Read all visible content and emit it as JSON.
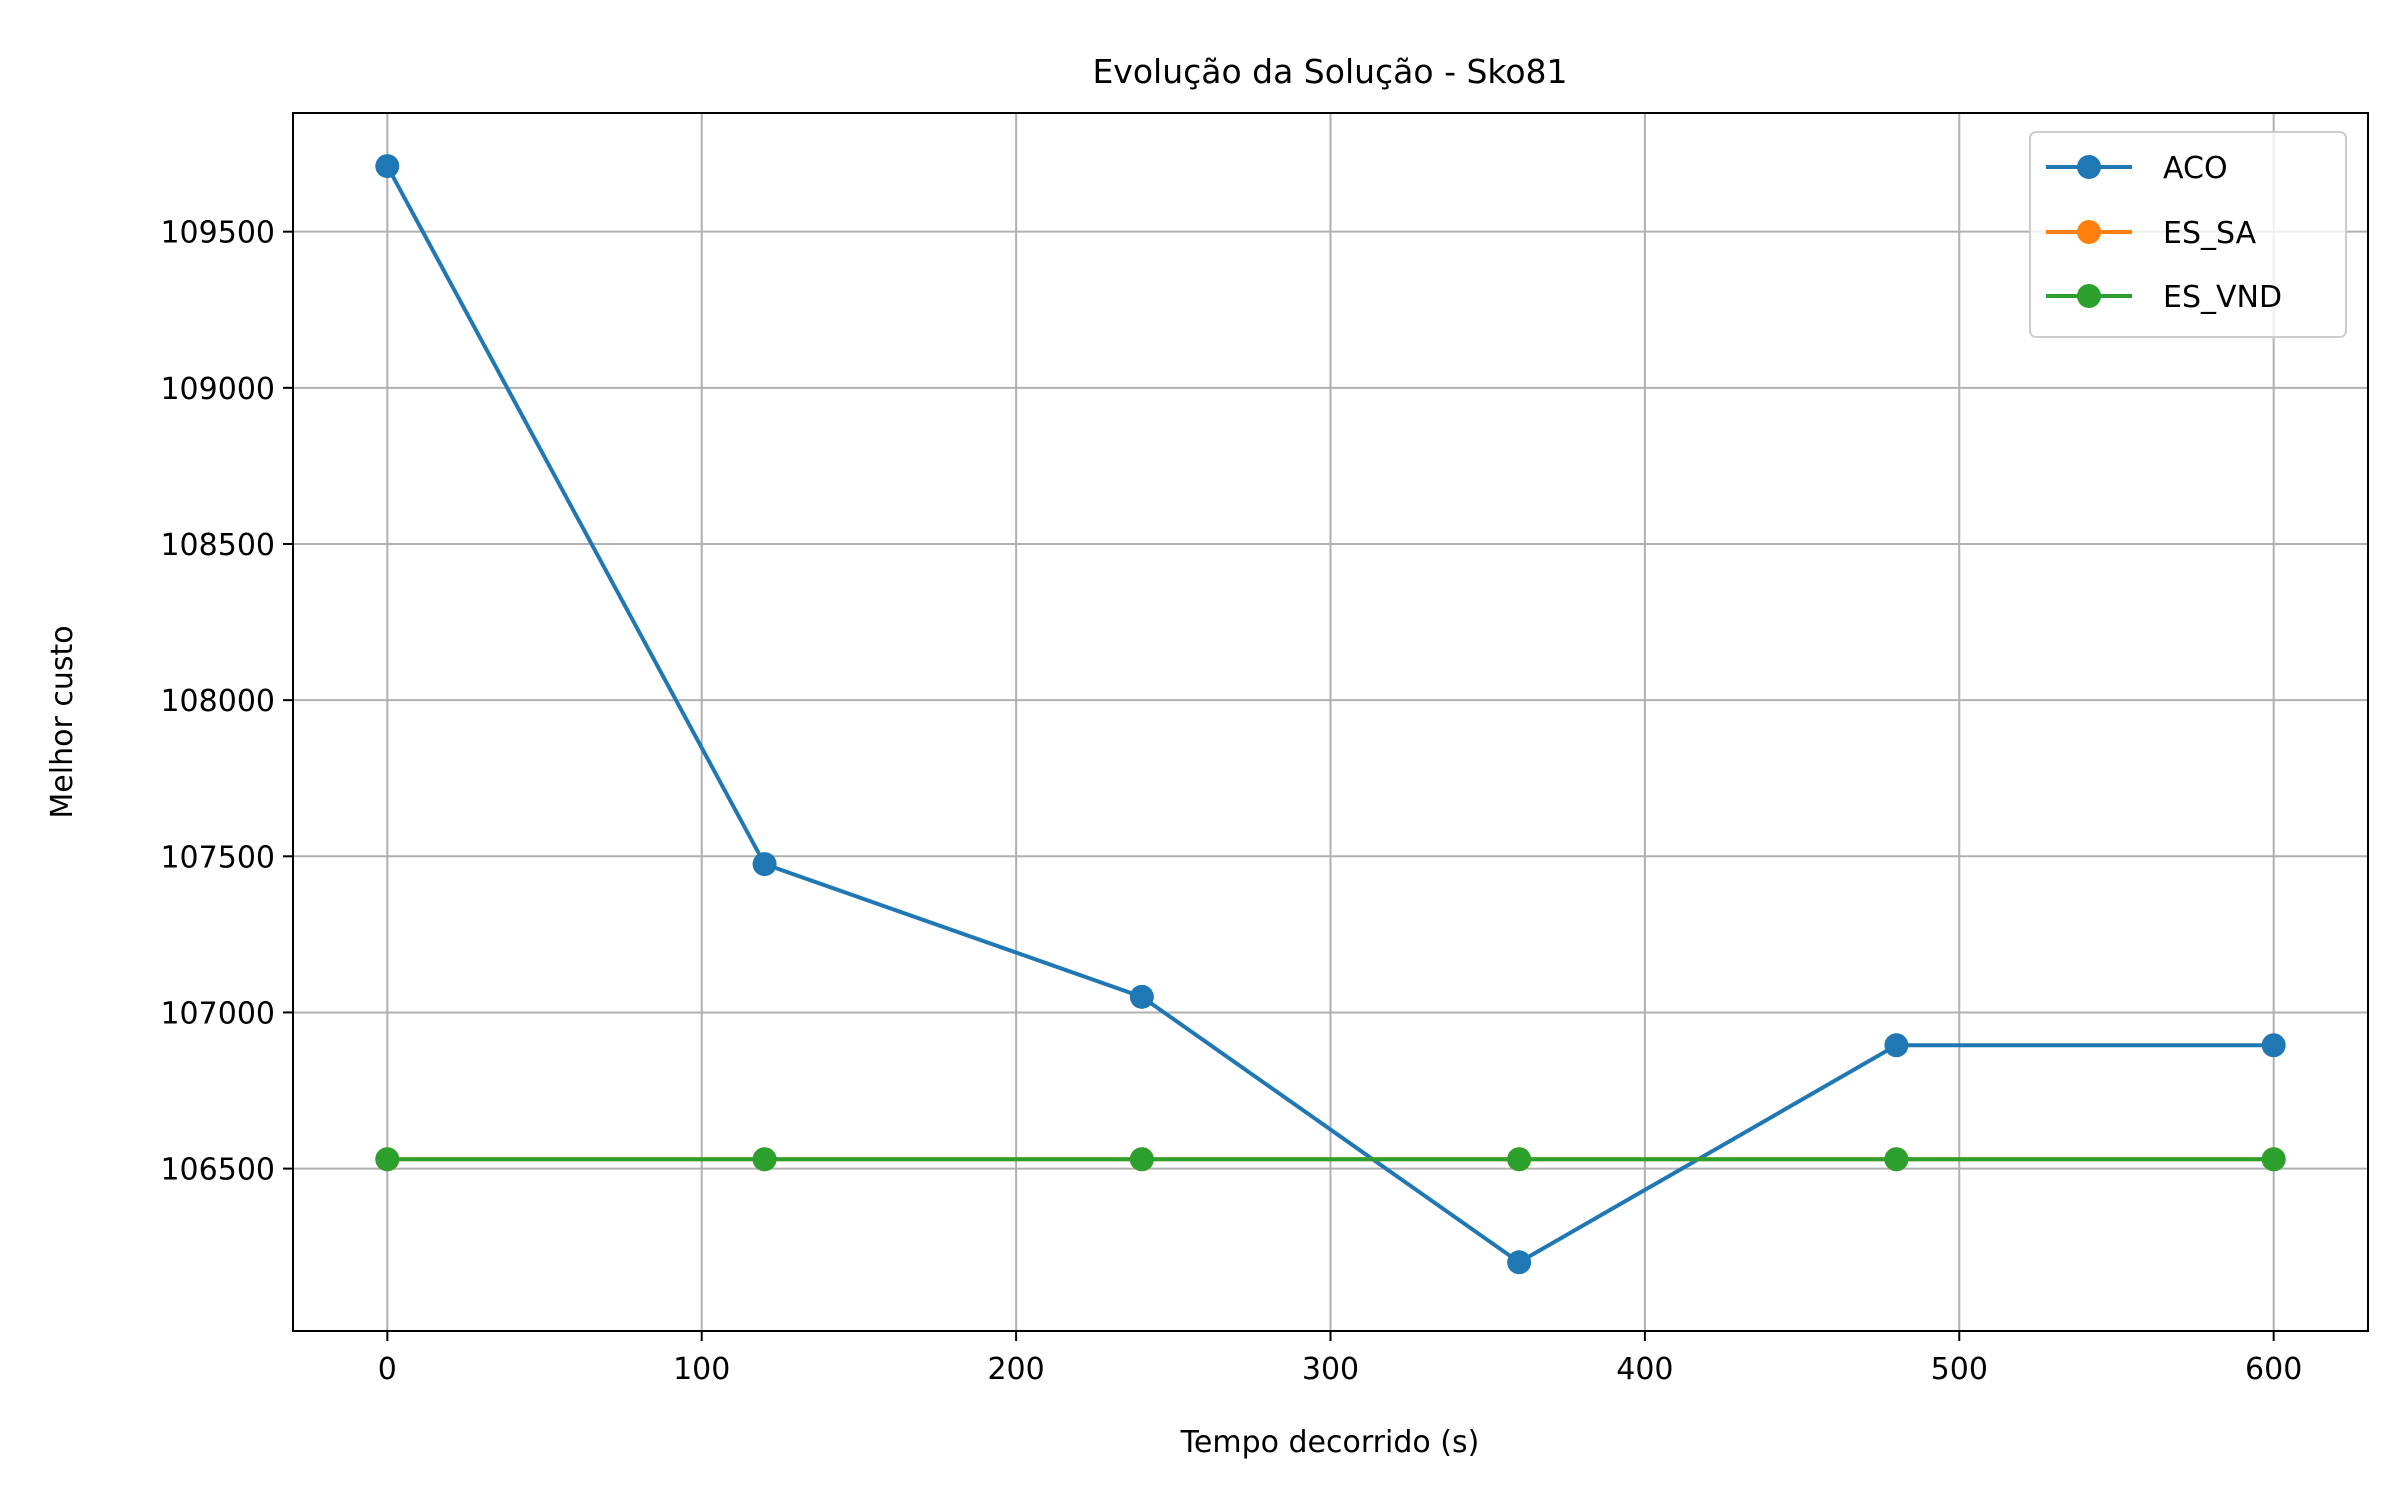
{
  "chart_data": {
    "type": "line",
    "title": "Evolução da Solução - Sko81",
    "xlabel": "Tempo decorrido (s)",
    "ylabel": "Melhor custo",
    "xlim": [
      -30,
      630
    ],
    "ylim": [
      105980,
      109880
    ],
    "xticks": [
      0,
      100,
      200,
      300,
      400,
      500,
      600
    ],
    "yticks": [
      106500,
      107000,
      107500,
      108000,
      108500,
      109000,
      109500
    ],
    "grid": true,
    "legend_position": "top-right",
    "series": [
      {
        "name": "ACO",
        "color": "#1f77b4",
        "x": [
          0,
          120,
          240,
          360,
          480,
          600
        ],
        "y": [
          109710,
          107475,
          107050,
          106200,
          106895,
          106895
        ]
      },
      {
        "name": "ES_SA",
        "color": "#ff7f0e",
        "x": [
          0,
          120,
          240,
          360,
          480,
          600
        ],
        "y": [
          106530,
          106530,
          106530,
          106530,
          106530,
          106530
        ]
      },
      {
        "name": "ES_VND",
        "color": "#2ca02c",
        "x": [
          0,
          120,
          240,
          360,
          480,
          600
        ],
        "y": [
          106530,
          106530,
          106530,
          106530,
          106530,
          106530
        ]
      }
    ]
  }
}
